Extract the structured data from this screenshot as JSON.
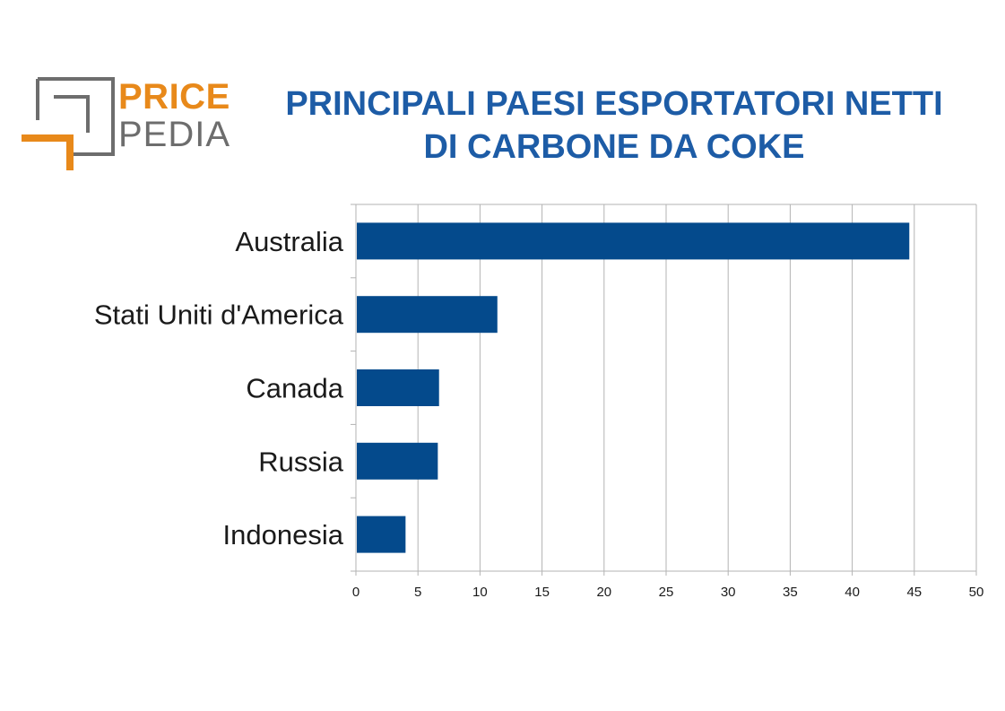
{
  "brand": {
    "word1": "PRICE",
    "word2": "PEDIA",
    "orange": "#e8891a",
    "gray": "#6d6d6d"
  },
  "title": {
    "line1": "PRINCIPALI PAESI ESPORTATORI NETTI",
    "line2": "DI CARBONE DA COKE",
    "color": "#1d5ca6"
  },
  "chart_data": {
    "type": "bar",
    "orientation": "horizontal",
    "categories": [
      "Australia",
      "Stati Uniti d'America",
      "Canada",
      "Russia",
      "Indonesia"
    ],
    "values": [
      44.6,
      11.4,
      6.7,
      6.6,
      4.0
    ],
    "xlim": [
      0,
      50
    ],
    "xticks": [
      0,
      5,
      10,
      15,
      20,
      25,
      30,
      35,
      40,
      45,
      50
    ],
    "grid": true,
    "bar_color": "#044a8c",
    "title": "",
    "xlabel": "",
    "ylabel": ""
  }
}
